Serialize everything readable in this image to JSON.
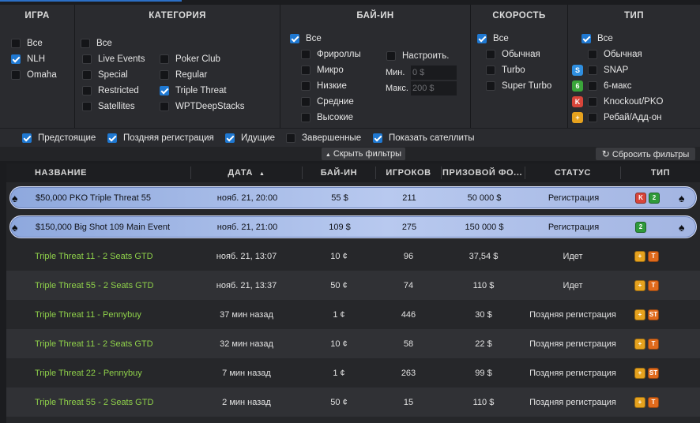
{
  "filters": {
    "headers": {
      "game": "ИГРА",
      "category": "КАТЕГОРИЯ",
      "buyin": "БАЙ-ИН",
      "speed": "СКОРОСТЬ",
      "type": "ТИП"
    },
    "game": [
      {
        "label": "Все",
        "checked": false
      },
      {
        "label": "NLH",
        "checked": true
      },
      {
        "label": "Omaha",
        "checked": false
      }
    ],
    "category": {
      "all": {
        "label": "Все",
        "checked": false
      },
      "left": [
        {
          "label": "Live Events",
          "checked": false
        },
        {
          "label": "Special",
          "checked": false
        },
        {
          "label": "Restricted",
          "checked": false
        },
        {
          "label": "Satellites",
          "checked": false
        }
      ],
      "right": [
        {
          "label": "Poker Club",
          "checked": false
        },
        {
          "label": "Regular",
          "checked": false
        },
        {
          "label": "Triple Threat",
          "checked": true
        },
        {
          "label": "WPTDeepStacks",
          "checked": false
        }
      ]
    },
    "buyin": {
      "all": {
        "label": "Все",
        "checked": true
      },
      "levels": [
        {
          "label": "Фрироллы",
          "checked": false
        },
        {
          "label": "Микро",
          "checked": false
        },
        {
          "label": "Низкие",
          "checked": false
        },
        {
          "label": "Средние",
          "checked": false
        },
        {
          "label": "Высокие",
          "checked": false
        }
      ],
      "custom": {
        "label": "Настроить.",
        "checked": false
      },
      "min_label": "Мин.",
      "min_placeholder": "0 $",
      "max_label": "Макс.",
      "max_placeholder": "200 $"
    },
    "speed": [
      {
        "label": "Все",
        "checked": true
      },
      {
        "label": "Обычная",
        "checked": false
      },
      {
        "label": "Turbo",
        "checked": false
      },
      {
        "label": "Super Turbo",
        "checked": false
      }
    ],
    "type": [
      {
        "label": "Все",
        "checked": true,
        "icon": ""
      },
      {
        "label": "Обычная",
        "checked": false,
        "icon": ""
      },
      {
        "label": "SNAP",
        "checked": false,
        "icon": "snap-icon",
        "icon_text": "S",
        "color": "#2f8fe0"
      },
      {
        "label": "6-макс",
        "checked": false,
        "icon": "six-max-icon",
        "icon_text": "6",
        "color": "#3aa53a"
      },
      {
        "label": "Knockout/PKO",
        "checked": false,
        "icon": "knockout-icon",
        "icon_text": "K",
        "color": "#d8453a"
      },
      {
        "label": "Ребай/Адд-он",
        "checked": false,
        "icon": "rebuy-icon",
        "icon_text": "+",
        "color": "#e6a21e"
      }
    ],
    "status": [
      {
        "label": "Предстоящие",
        "checked": true
      },
      {
        "label": "Поздняя регистрация",
        "checked": true
      },
      {
        "label": "Идущие",
        "checked": true
      },
      {
        "label": "Завершенные",
        "checked": false
      },
      {
        "label": "Показать сателлиты",
        "checked": true
      }
    ],
    "hide_filters": "Скрыть фильтры",
    "hide_arrow": "▲",
    "reset_filters": "Сбросить фильтры",
    "reset_icon": "↻"
  },
  "table": {
    "columns": {
      "name": "НАЗВАНИЕ",
      "date": "ДАТА",
      "buyin": "БАЙ-ИН",
      "players": "ИГРОКОВ",
      "prize": "ПРИЗОВОЙ ФО...",
      "status": "СТАТУС",
      "type": "ТИП"
    },
    "sort_arrow": "▲",
    "rows": [
      {
        "featured": true,
        "name": "$50,000 PKO Triple Threat 55",
        "date": "нояб. 21, 20:00",
        "buyin": "55 $",
        "players": "211",
        "prize": "50 000 $",
        "status": "Регистрация",
        "badges": [
          {
            "icon": "knockout-icon",
            "text": "K",
            "color": "#d8453a"
          },
          {
            "icon": "two-max-icon",
            "text": "2",
            "color": "#2f9a3a"
          }
        ]
      },
      {
        "featured": true,
        "name": "$150,000 Big Shot 109 Main Event",
        "date": "нояб. 21, 21:00",
        "buyin": "109 $",
        "players": "275",
        "prize": "150 000 $",
        "status": "Регистрация",
        "badges": [
          {
            "icon": "two-max-icon",
            "text": "2",
            "color": "#2f9a3a"
          }
        ]
      },
      {
        "featured": false,
        "name": "Triple Threat 11 - 2 Seats GTD",
        "date": "нояб. 21, 13:07",
        "buyin": "10 ¢",
        "players": "96",
        "prize": "37,54 $",
        "status": "Идет",
        "badges": [
          {
            "icon": "rebuy-icon",
            "text": "+",
            "color": "#e6a21e"
          },
          {
            "icon": "turbo-icon",
            "text": "T",
            "color": "#e06a1c"
          }
        ]
      },
      {
        "featured": false,
        "name": "Triple Threat 55 - 2 Seats GTD",
        "date": "нояб. 21, 13:37",
        "buyin": "50 ¢",
        "players": "74",
        "prize": "110 $",
        "status": "Идет",
        "badges": [
          {
            "icon": "rebuy-icon",
            "text": "+",
            "color": "#e6a21e"
          },
          {
            "icon": "turbo-icon",
            "text": "T",
            "color": "#e06a1c"
          }
        ]
      },
      {
        "featured": false,
        "name": "Triple Threat 11 - Pennybuy",
        "date": "37 мин назад",
        "buyin": "1 ¢",
        "players": "446",
        "prize": "30 $",
        "status": "Поздняя регистрация",
        "badges": [
          {
            "icon": "rebuy-icon",
            "text": "+",
            "color": "#e6a21e"
          },
          {
            "icon": "super-turbo-icon",
            "text": "ST",
            "color": "#e06a1c"
          }
        ]
      },
      {
        "featured": false,
        "name": "Triple Threat 11 - 2 Seats GTD",
        "date": "32 мин назад",
        "buyin": "10 ¢",
        "players": "58",
        "prize": "22 $",
        "status": "Поздняя регистрация",
        "badges": [
          {
            "icon": "rebuy-icon",
            "text": "+",
            "color": "#e6a21e"
          },
          {
            "icon": "turbo-icon",
            "text": "T",
            "color": "#e06a1c"
          }
        ]
      },
      {
        "featured": false,
        "name": "Triple Threat 22 - Pennybuy",
        "date": "7 мин назад",
        "buyin": "1 ¢",
        "players": "263",
        "prize": "99 $",
        "status": "Поздняя регистрация",
        "badges": [
          {
            "icon": "rebuy-icon",
            "text": "+",
            "color": "#e6a21e"
          },
          {
            "icon": "super-turbo-icon",
            "text": "ST",
            "color": "#e06a1c"
          }
        ]
      },
      {
        "featured": false,
        "name": "Triple Threat 55 - 2 Seats GTD",
        "date": "2 мин назад",
        "buyin": "50 ¢",
        "players": "15",
        "prize": "110 $",
        "status": "Поздняя регистрация",
        "badges": [
          {
            "icon": "rebuy-icon",
            "text": "+",
            "color": "#e6a21e"
          },
          {
            "icon": "turbo-icon",
            "text": "T",
            "color": "#e06a1c"
          }
        ]
      }
    ]
  }
}
